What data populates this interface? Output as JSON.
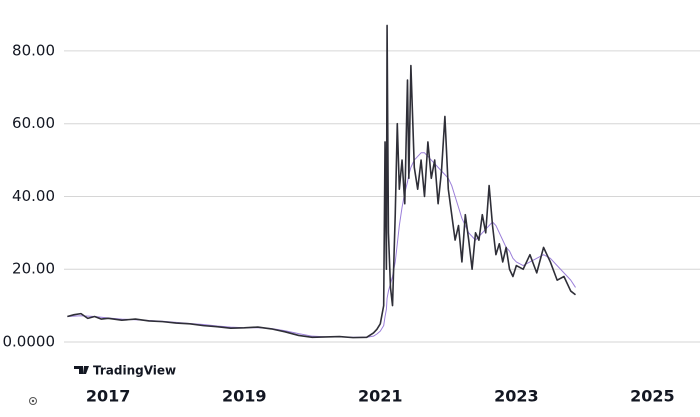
{
  "chart_data": {
    "type": "line",
    "brand": "TradingView",
    "x": [
      2016.4,
      2016.5,
      2016.6,
      2016.7,
      2016.8,
      2016.9,
      2017.0,
      2017.2,
      2017.4,
      2017.6,
      2017.8,
      2018.0,
      2018.2,
      2018.4,
      2018.6,
      2018.8,
      2019.0,
      2019.2,
      2019.4,
      2019.6,
      2019.8,
      2020.0,
      2020.2,
      2020.4,
      2020.6,
      2020.8,
      2020.9,
      2020.95,
      2021.0,
      2021.05,
      2021.07,
      2021.09,
      2021.1,
      2021.12,
      2021.15,
      2021.18,
      2021.22,
      2021.25,
      2021.28,
      2021.32,
      2021.36,
      2021.4,
      2021.42,
      2021.45,
      2021.5,
      2021.55,
      2021.6,
      2021.65,
      2021.7,
      2021.75,
      2021.8,
      2021.85,
      2021.9,
      2021.95,
      2022.0,
      2022.05,
      2022.1,
      2022.15,
      2022.2,
      2022.25,
      2022.3,
      2022.35,
      2022.4,
      2022.45,
      2022.5,
      2022.55,
      2022.6,
      2022.65,
      2022.7,
      2022.75,
      2022.8,
      2022.85,
      2022.9,
      2022.95,
      2023.0,
      2023.1,
      2023.2,
      2023.3,
      2023.4,
      2023.5,
      2023.6,
      2023.7,
      2023.8,
      2023.87
    ],
    "series": [
      {
        "color": "#9b7fd9",
        "values": [
          7,
          7.1,
          7.2,
          7.1,
          7,
          6.8,
          6.6,
          6.3,
          6.1,
          5.9,
          5.7,
          5.4,
          5.1,
          4.8,
          4.4,
          4.1,
          3.9,
          3.9,
          3.7,
          3.1,
          2.3,
          1.6,
          1.4,
          1.4,
          1.3,
          1.3,
          1.6,
          2.2,
          3,
          4.5,
          7,
          9,
          12,
          14,
          16,
          18,
          22,
          27,
          32,
          37,
          41,
          44,
          46,
          48,
          50,
          51,
          52,
          52,
          51,
          50,
          49,
          48,
          47,
          46,
          45,
          43,
          40,
          37,
          34,
          32,
          30,
          29,
          28,
          29,
          30,
          31,
          32,
          33,
          32,
          30,
          28,
          26,
          25,
          23,
          22,
          21,
          22,
          23,
          24,
          23,
          21,
          19,
          17,
          15
        ]
      },
      {
        "color": "#2f2f38",
        "values": [
          7,
          7.5,
          7.8,
          6.5,
          7,
          6.3,
          6.5,
          6,
          6.3,
          5.8,
          5.6,
          5.2,
          5,
          4.5,
          4.2,
          3.8,
          3.9,
          4.1,
          3.6,
          2.8,
          1.8,
          1.3,
          1.4,
          1.5,
          1.2,
          1.3,
          2.5,
          3.5,
          5,
          10,
          55,
          20,
          87,
          30,
          15,
          10,
          35,
          60,
          42,
          50,
          38,
          72,
          45,
          76,
          48,
          42,
          50,
          40,
          55,
          45,
          50,
          38,
          47,
          62,
          42,
          35,
          28,
          32,
          22,
          35,
          28,
          20,
          30,
          28,
          35,
          30,
          43,
          32,
          24,
          27,
          22,
          26,
          20,
          18,
          21,
          20,
          24,
          19,
          26,
          22,
          17,
          18,
          14,
          13
        ]
      }
    ],
    "xlim": [
      2016.38,
      2025.7
    ],
    "xticks": [
      2017,
      2019,
      2021,
      2023,
      2025
    ],
    "ylim": [
      0,
      94
    ],
    "yticks": [
      {
        "value": 0,
        "label": "0.0000"
      },
      {
        "value": 20,
        "label": "20.00"
      },
      {
        "value": 40,
        "label": "40.00"
      },
      {
        "value": 60,
        "label": "60.00"
      },
      {
        "value": 80,
        "label": "80.00"
      }
    ],
    "grid": true
  }
}
